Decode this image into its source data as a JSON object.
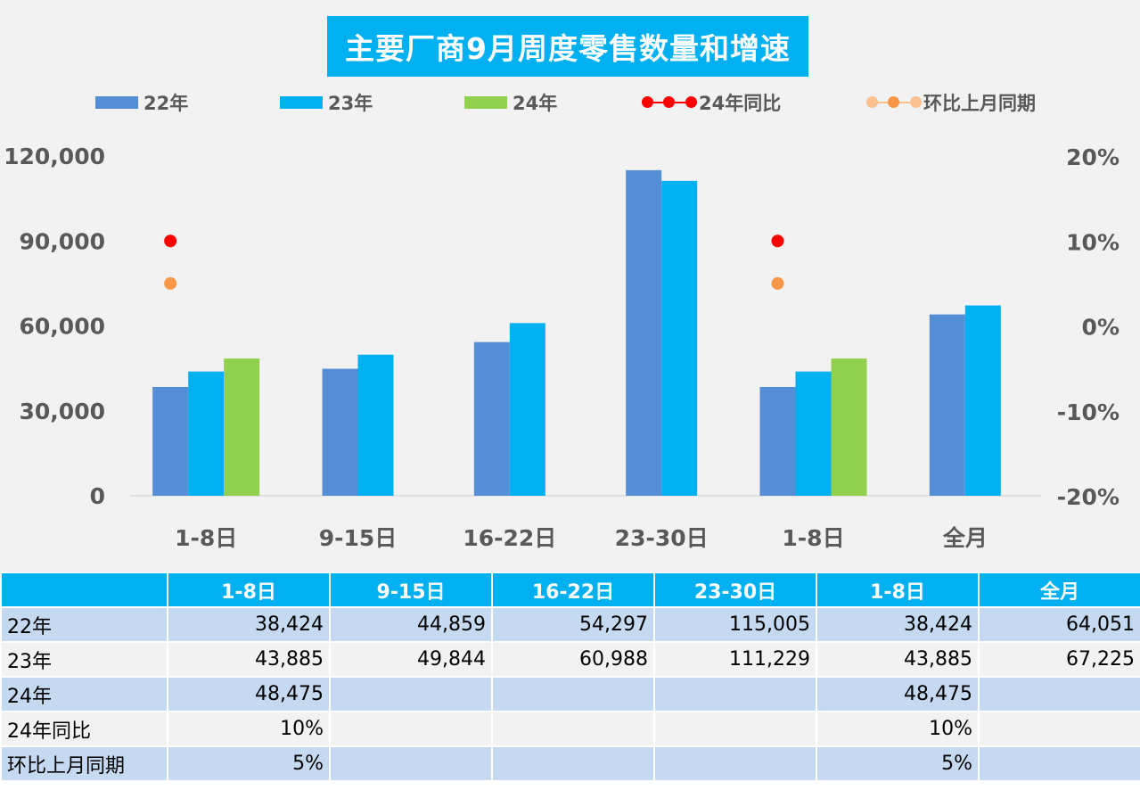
{
  "title": "主要厂商9月周度零售数量和增速",
  "colors": {
    "s22": "#558ed5",
    "s23": "#00b0f0",
    "s24": "#92d050",
    "yoy": "#ff0000",
    "mom": "#f79646",
    "mom_line": "#fac090",
    "table_header": "#00b0f0",
    "row_odd": "#c5d9f1",
    "row_even": "#f2f2f2"
  },
  "legend": {
    "s22": "22年",
    "s23": "23年",
    "s24": "24年",
    "yoy": "24年同比",
    "mom": "环比上月同期"
  },
  "chart_data": {
    "type": "bar",
    "title": "主要厂商9月周度零售数量和增速",
    "categories": [
      "1-8日",
      "9-15日",
      "16-22日",
      "23-30日",
      "1-8日",
      "全月"
    ],
    "series": [
      {
        "name": "22年",
        "type": "bar",
        "axis": "left",
        "values": [
          38424,
          44859,
          54297,
          115005,
          38424,
          64051
        ]
      },
      {
        "name": "23年",
        "type": "bar",
        "axis": "left",
        "values": [
          43885,
          49844,
          60988,
          111229,
          43885,
          67225
        ]
      },
      {
        "name": "24年",
        "type": "bar",
        "axis": "left",
        "values": [
          48475,
          null,
          null,
          null,
          48475,
          null
        ]
      },
      {
        "name": "24年同比",
        "type": "line",
        "axis": "right",
        "values": [
          0.1,
          null,
          null,
          null,
          0.1,
          null
        ]
      },
      {
        "name": "环比上月同期",
        "type": "line",
        "axis": "right",
        "values": [
          0.05,
          null,
          null,
          null,
          0.05,
          null
        ]
      }
    ],
    "y_left": {
      "min": 0,
      "max": 120000,
      "ticks": [
        0,
        30000,
        60000,
        90000,
        120000
      ],
      "tick_labels": [
        "0",
        "30,000",
        "60,000",
        "90,000",
        "120,000"
      ]
    },
    "y_right": {
      "min": -0.2,
      "max": 0.2,
      "ticks": [
        -0.2,
        -0.1,
        0,
        0.1,
        0.2
      ],
      "tick_labels": [
        "-20%",
        "-10%",
        "0%",
        "10%",
        "20%"
      ]
    },
    "grid": false,
    "legend_position": "top"
  },
  "table": {
    "header": [
      "",
      "1-8日",
      "9-15日",
      "16-22日",
      "23-30日",
      "1-8日",
      "全月"
    ],
    "rows": [
      {
        "label": "22年",
        "cells": [
          "38,424",
          "44,859",
          "54,297",
          "115,005",
          "38,424",
          "64,051"
        ]
      },
      {
        "label": "23年",
        "cells": [
          "43,885",
          "49,844",
          "60,988",
          "111,229",
          "43,885",
          "67,225"
        ]
      },
      {
        "label": "24年",
        "cells": [
          "48,475",
          "",
          "",
          "",
          "48,475",
          ""
        ]
      },
      {
        "label": "24年同比",
        "cells": [
          "10%",
          "",
          "",
          "",
          "10%",
          ""
        ]
      },
      {
        "label": "环比上月同期",
        "cells": [
          "5%",
          "",
          "",
          "",
          "5%",
          ""
        ]
      }
    ]
  }
}
